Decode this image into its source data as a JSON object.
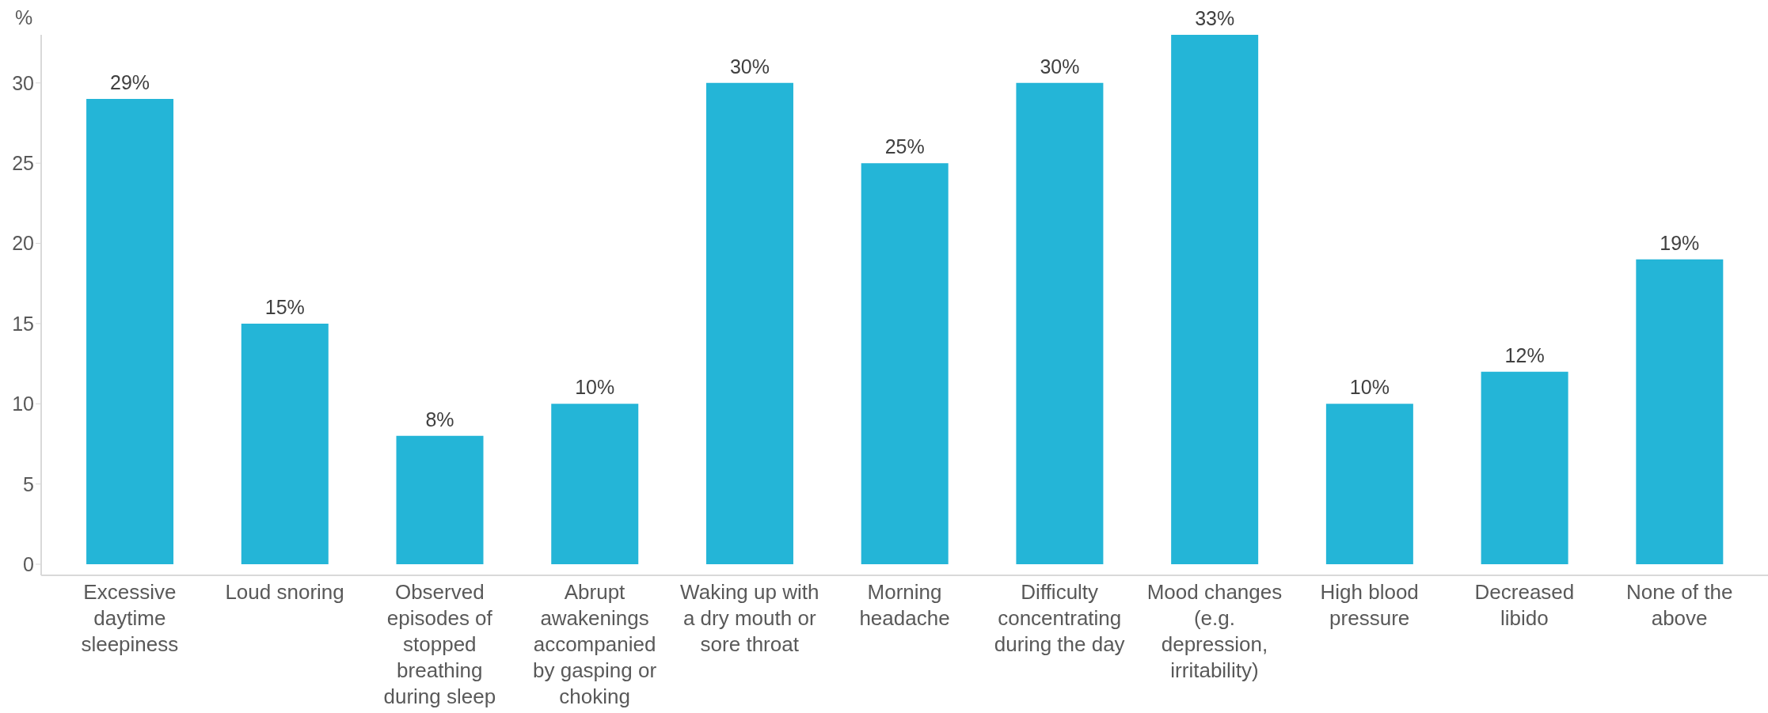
{
  "chart_data": {
    "type": "bar",
    "ylabel": "%",
    "categories": [
      "Excessive daytime sleepiness",
      "Loud snoring",
      "Observed episodes of stopped breathing during sleep",
      "Abrupt awakenings accompanied by gasping or choking",
      "Waking up with a dry mouth or sore throat",
      "Morning headache",
      "Difficulty concentrating during the day",
      "Mood changes (e.g. depression, irritability)",
      "High blood pressure",
      "Decreased libido",
      "None of the above"
    ],
    "values": [
      29,
      15,
      8,
      10,
      30,
      25,
      30,
      33,
      10,
      12,
      19
    ],
    "value_labels": [
      "29%",
      "15%",
      "8%",
      "10%",
      "30%",
      "25%",
      "30%",
      "33%",
      "10%",
      "12%",
      "19%"
    ],
    "color": "#24b5d7",
    "ylim": [
      0,
      33
    ],
    "yticks": [
      0,
      5,
      10,
      15,
      20,
      25,
      30
    ]
  }
}
